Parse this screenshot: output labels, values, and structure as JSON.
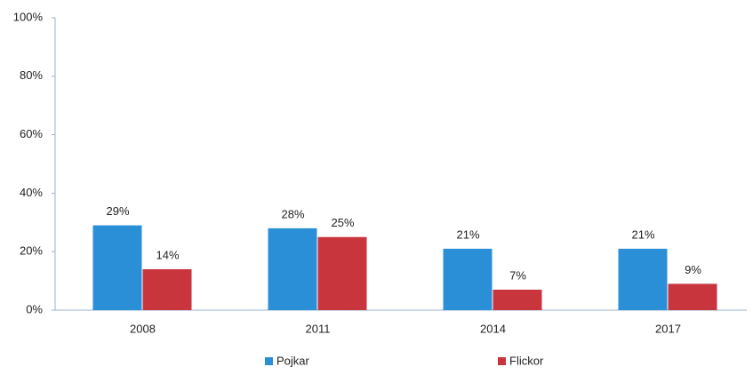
{
  "chart_data": {
    "type": "bar",
    "categories": [
      "2008",
      "2011",
      "2014",
      "2017"
    ],
    "series": [
      {
        "name": "Pojkar",
        "color": "#2b8fd8",
        "values": [
          29,
          28,
          21,
          21
        ],
        "value_labels": [
          "29%",
          "28%",
          "21%",
          "21%"
        ]
      },
      {
        "name": "Flickor",
        "color": "#c8353d",
        "values": [
          14,
          25,
          7,
          9
        ],
        "value_labels": [
          "14%",
          "25%",
          "7%",
          "9%"
        ]
      }
    ],
    "ylim": [
      0,
      100
    ],
    "yticks": [
      {
        "value": 0,
        "label": "0%"
      },
      {
        "value": 20,
        "label": "20%"
      },
      {
        "value": 40,
        "label": "40%"
      },
      {
        "value": 60,
        "label": "60%"
      },
      {
        "value": 80,
        "label": "80%"
      },
      {
        "value": 100,
        "label": "100%"
      }
    ],
    "grid": false,
    "legend": "bottom"
  }
}
